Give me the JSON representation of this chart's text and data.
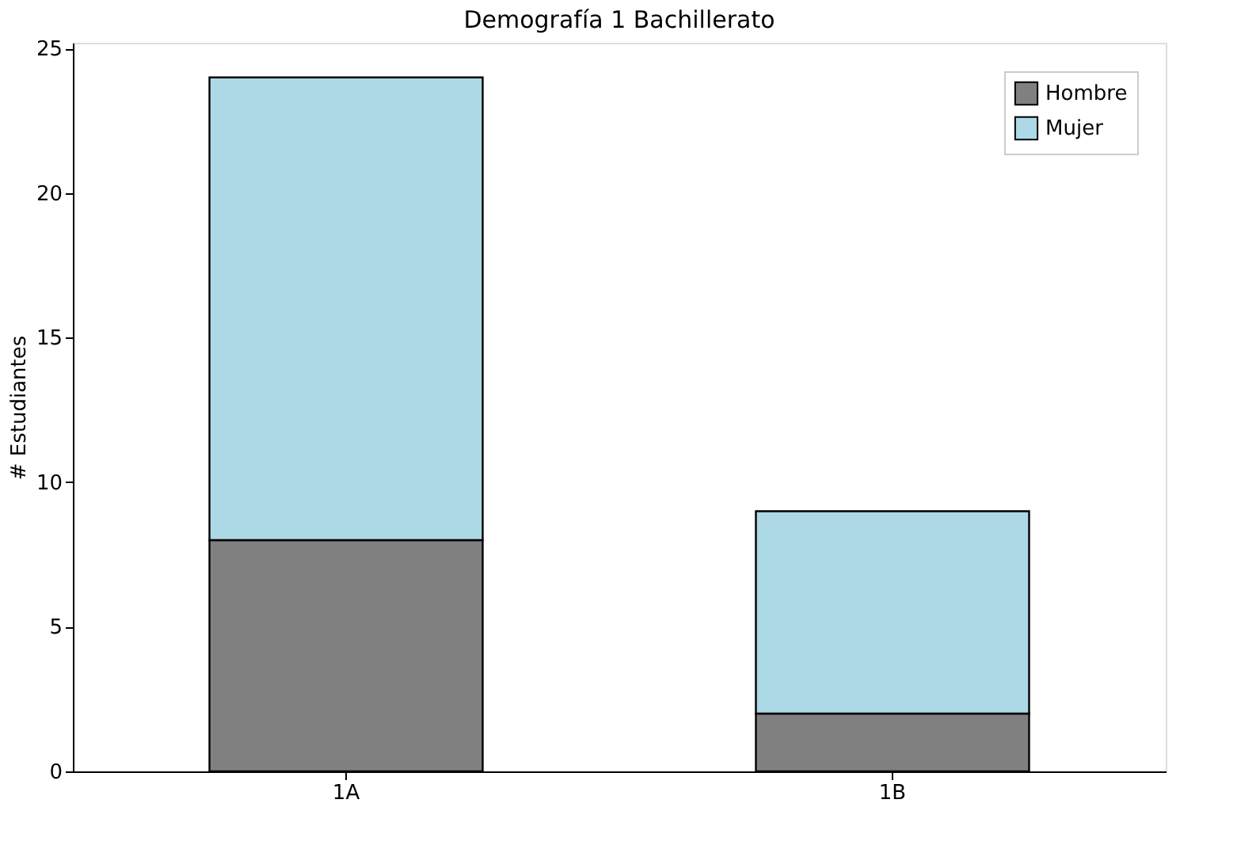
{
  "chart_data": {
    "type": "bar",
    "title": "Demografía 1 Bachillerato",
    "ylabel": "# Estudiantes",
    "categories": [
      "1A",
      "1B"
    ],
    "stacked": true,
    "series": [
      {
        "name": "Hombre",
        "color": "#808080",
        "values": [
          8,
          2
        ]
      },
      {
        "name": "Mujer",
        "color": "#add8e6",
        "values": [
          16,
          7
        ]
      }
    ],
    "ylim": [
      0,
      25.2
    ],
    "yticks": [
      0,
      5,
      10,
      15,
      20,
      25
    ],
    "grid": false,
    "legend": "top right"
  }
}
